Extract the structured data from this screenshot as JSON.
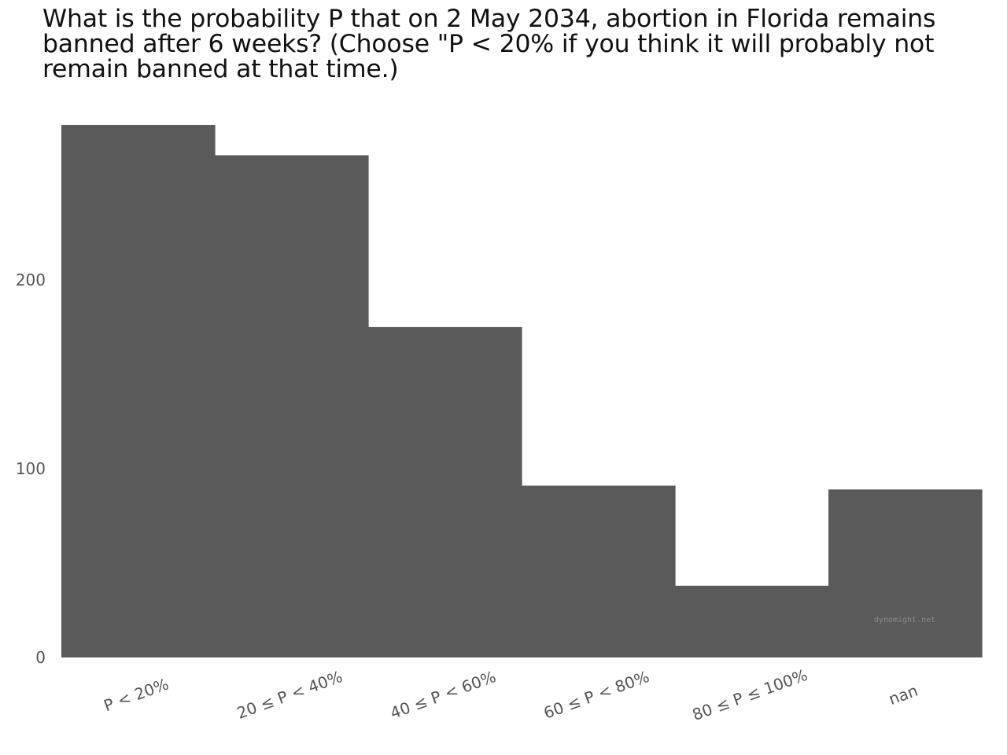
{
  "chart_data": {
    "type": "bar",
    "title": "What is the probability P that on 2 May 2034, abortion in Florida remains banned after 6 weeks? (Choose \"P < 20% if you think it will probably not remain banned at that time.)",
    "xlabel": "",
    "ylabel": "",
    "categories": [
      "P < 20%",
      "20 ≤ P < 40%",
      "40 ≤ P < 60%",
      "60 ≤ P < 80%",
      "80 ≤ P ≤ 100%",
      "nan"
    ],
    "values": [
      282,
      266,
      175,
      91,
      38,
      89
    ],
    "ylim": [
      0,
      282
    ],
    "yticks": [
      0,
      100,
      200
    ],
    "grid": false,
    "bar_color": "#5a5a5a"
  },
  "watermark": "dynomight.net"
}
